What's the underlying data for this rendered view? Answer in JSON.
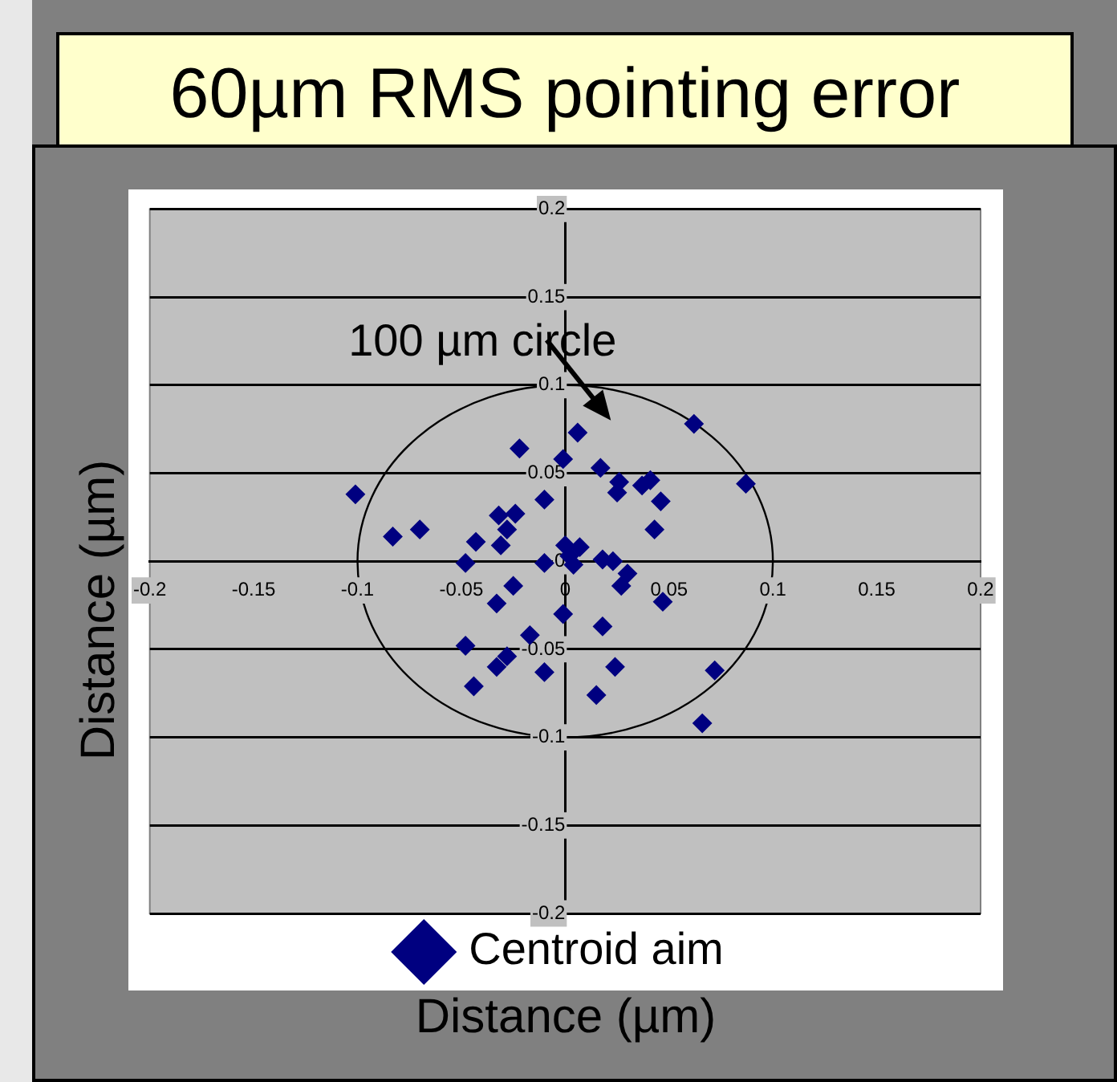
{
  "chart_data": {
    "type": "scatter",
    "title": "60µm RMS pointing error",
    "xlabel": "Distance (µm)",
    "ylabel": "Distance (µm)",
    "annotations": [
      "100 µm circle"
    ],
    "series": [
      {
        "name": "Centroid aim",
        "color": "#000080",
        "x": [
          -0.101,
          -0.083,
          -0.07,
          -0.022,
          -0.01,
          -0.032,
          -0.024,
          -0.028,
          -0.043,
          -0.031,
          -0.048,
          -0.01,
          -0.025,
          -0.033,
          -0.017,
          -0.048,
          -0.028,
          -0.033,
          -0.01,
          -0.044,
          0.006,
          -0.001,
          0.017,
          0.062,
          0.087,
          0.026,
          0.025,
          0.037,
          0.041,
          0.046,
          0.043,
          0.0,
          0.007,
          0.002,
          0.004,
          0.018,
          0.023,
          0.03,
          0.027,
          0.047,
          -0.001,
          0.018,
          0.024,
          0.015,
          0.072,
          0.066
        ],
        "values": [
          0.038,
          0.014,
          0.018,
          0.064,
          0.035,
          0.026,
          0.027,
          0.018,
          0.011,
          0.009,
          -0.001,
          -0.001,
          -0.014,
          -0.024,
          -0.042,
          -0.048,
          -0.054,
          -0.06,
          -0.063,
          -0.071,
          0.073,
          0.058,
          0.053,
          0.078,
          0.044,
          0.045,
          0.039,
          0.043,
          0.046,
          0.034,
          0.018,
          0.009,
          0.008,
          0.003,
          -0.002,
          0.001,
          0.0,
          -0.007,
          -0.014,
          -0.023,
          -0.03,
          -0.037,
          -0.06,
          -0.076,
          -0.062,
          -0.092
        ]
      }
    ],
    "xlim": [
      -0.2,
      0.2
    ],
    "xticks": [
      -0.2,
      -0.15,
      -0.1,
      -0.05,
      0,
      0.05,
      0.1,
      0.15,
      0.2
    ],
    "ylim": [
      -0.2,
      0.2
    ],
    "yticks": [
      -0.2,
      -0.15,
      -0.1,
      -0.05,
      0,
      0.05,
      0.1,
      0.15,
      0.2
    ],
    "grid": "y",
    "legend": "bottom",
    "marker": "diamond"
  }
}
